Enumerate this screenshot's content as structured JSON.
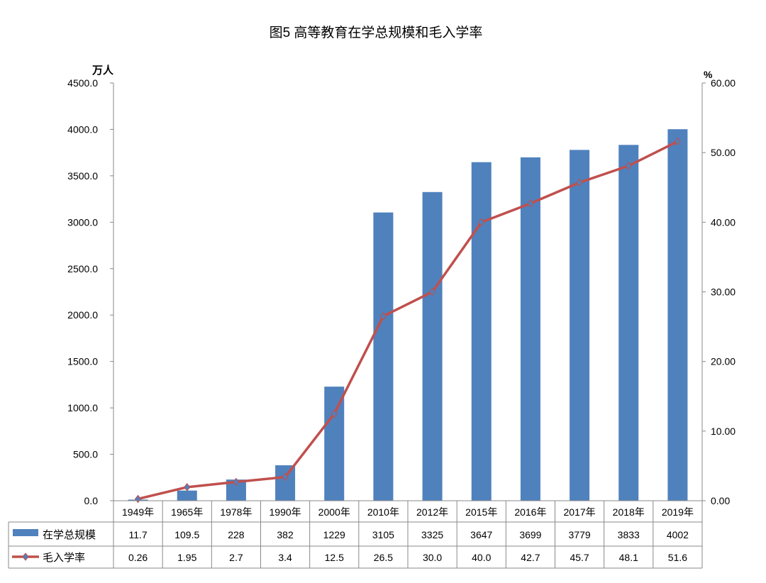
{
  "chart_data": {
    "type": "bar+line",
    "title": "图5 高等教育在学总规模和毛入学率",
    "categories": [
      "1949年",
      "1965年",
      "1978年",
      "1990年",
      "2000年",
      "2010年",
      "2012年",
      "2015年",
      "2016年",
      "2017年",
      "2018年",
      "2019年"
    ],
    "series": [
      {
        "name": "在学总规模",
        "type": "bar",
        "axis": "left",
        "color": "#4f81bd",
        "values": [
          11.7,
          109.5,
          228,
          382,
          1229,
          3105,
          3325,
          3647,
          3699,
          3779,
          3833,
          4002
        ],
        "labels": [
          "11.7",
          "109.5",
          "228",
          "382",
          "1229",
          "3105",
          "3325",
          "3647",
          "3699",
          "3779",
          "3833",
          "4002"
        ]
      },
      {
        "name": "毛入学率",
        "type": "line",
        "axis": "right",
        "color": "#c0504d",
        "values": [
          0.26,
          1.95,
          2.7,
          3.4,
          12.5,
          26.5,
          30.0,
          40.0,
          42.7,
          45.7,
          48.1,
          51.6
        ],
        "labels": [
          "0.26",
          "1.95",
          "2.7",
          "3.4",
          "12.5",
          "26.5",
          "30.0",
          "40.0",
          "42.7",
          "45.7",
          "48.1",
          "51.6"
        ]
      }
    ],
    "left_axis": {
      "unit": "万人",
      "ylim": [
        0,
        4500
      ],
      "ticks": [
        "0.0",
        "500.0",
        "1000.0",
        "1500.0",
        "2000.0",
        "2500.0",
        "3000.0",
        "3500.0",
        "4000.0",
        "4500.0"
      ]
    },
    "right_axis": {
      "unit": "%",
      "ylim": [
        0,
        60
      ],
      "ticks": [
        "0.00",
        "10.00",
        "20.00",
        "30.00",
        "40.00",
        "50.00",
        "60.00"
      ]
    },
    "grid": false,
    "legend": "data-table"
  }
}
